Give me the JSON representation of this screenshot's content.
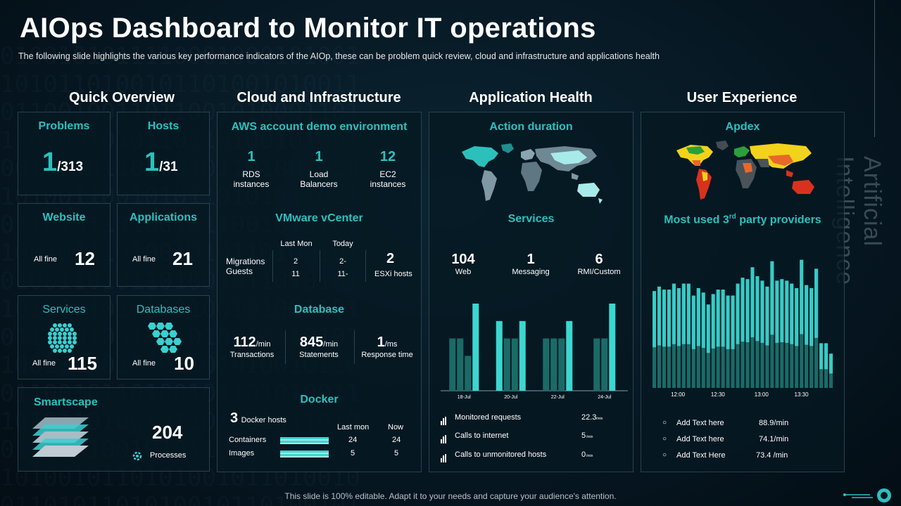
{
  "title": "AIOps Dashboard to Monitor IT operations",
  "subtitle": "The following  slide highlights the various  key performance  indicators of the AIOp, these can be problem  quick review,  cloud and infrastructure  and applications health",
  "footer": "This slide is 100% editable. Adapt it to your needs and capture your audience's attention.",
  "side_label": "Artificial Intelligence",
  "colors": {
    "accent": "#2cc0bd",
    "panel_border": "#2a4250",
    "bar_light": "#3cd6d0",
    "bar_dark": "#1a6b68"
  },
  "quick_overview": {
    "heading": "Quick Overview",
    "problems": {
      "label": "Problems",
      "value": "1",
      "total": "/313"
    },
    "hosts": {
      "label": "Hosts",
      "value": "1",
      "total": "/31"
    },
    "website": {
      "label": "Website",
      "status": "All fine",
      "value": "12"
    },
    "applications": {
      "label": "Applications",
      "status": "All fine",
      "value": "21"
    },
    "services": {
      "label": "Services",
      "status": "All fine",
      "value": "115",
      "icon": "hexagon-cluster-icon"
    },
    "databases": {
      "label": "Databases",
      "status": "All fine",
      "value": "10",
      "icon": "hexagon-cluster-icon"
    },
    "smartscape": {
      "label": "Smartscape",
      "value": "204",
      "sub": "Processes",
      "icon": "stacked-layers-icon"
    }
  },
  "cloud": {
    "heading": "Cloud and Infrastructure",
    "aws": {
      "label": "AWS account demo environment",
      "items": [
        {
          "value": "1",
          "line1": "RDS",
          "line2": "instances"
        },
        {
          "value": "1",
          "line1": "Load",
          "line2": "Balancers"
        },
        {
          "value": "12",
          "line1": "EC2",
          "line2": "instances"
        }
      ]
    },
    "vmware": {
      "label": "VMware vCenter",
      "row_labels": [
        "Migrations",
        "Guests"
      ],
      "col_last": "Last Mon",
      "col_today": "Today",
      "last_values": [
        "2",
        "11"
      ],
      "today_values": [
        "2-",
        "11-"
      ],
      "esxi_value": "2",
      "esxi_label": "ESXi  hosts"
    },
    "database": {
      "label": "Database",
      "items": [
        {
          "value": "112",
          "unit": "/min",
          "label": "Transactions"
        },
        {
          "value": "845",
          "unit": "/min",
          "label": "Statements"
        },
        {
          "value": "1",
          "unit": "/ms",
          "label": "Response time"
        }
      ]
    },
    "docker": {
      "label": "Docker",
      "hosts_value": "3",
      "hosts_label": "Docker hosts",
      "col_last": "Last mon",
      "col_now": "Now",
      "rows": [
        {
          "label": "Containers",
          "last": "24",
          "now": "24"
        },
        {
          "label": "Images",
          "last": "5",
          "now": "5"
        }
      ]
    }
  },
  "app_health": {
    "heading": "Application Health",
    "action_label": "Action duration",
    "services_label": "Services",
    "services": [
      {
        "value": "104",
        "label": "Web"
      },
      {
        "value": "1",
        "label": "Messaging"
      },
      {
        "value": "6",
        "label": "RMI/Custom"
      }
    ],
    "metrics": [
      {
        "label": "Monitored requests",
        "value": "22.3",
        "unit": "/min"
      },
      {
        "label": "Calls to internet",
        "value": "5",
        "unit": "/min"
      },
      {
        "label": "Calls to unmonitored hosts",
        "value": "0",
        "unit": "/min"
      }
    ]
  },
  "user_exp": {
    "heading": "User Experience",
    "apdex_label": "Apdex",
    "providers_label": "Most used 3",
    "providers_sup": "rd",
    "providers_tail": " party providers",
    "items": [
      {
        "label": "Add Text here",
        "value": "88.9/min"
      },
      {
        "label": "Add Text here",
        "value": "74.1/min"
      },
      {
        "label": "Add Text Here",
        "value": "73.4 /min"
      }
    ]
  },
  "chart_data": [
    {
      "type": "bar",
      "x_ticks": [
        "18-Jul",
        "20-Jul",
        "22-Jul",
        "24-Jul"
      ],
      "groups": [
        {
          "label": "18-Jul",
          "values": [
            60,
            60,
            40,
            100
          ]
        },
        {
          "label": "20-Jul",
          "values": [
            80,
            60,
            60,
            80
          ]
        },
        {
          "label": "22-Jul",
          "values": [
            60,
            60,
            60,
            80
          ]
        },
        {
          "label": "24-Jul",
          "values": [
            60,
            60,
            100
          ]
        }
      ],
      "ylim": [
        0,
        100
      ]
    },
    {
      "type": "bar",
      "x_ticks": [
        "12:00",
        "12:30",
        "13:00",
        "13:30"
      ],
      "values": [
        65,
        68,
        66,
        66,
        70,
        67,
        70,
        70,
        62,
        67,
        64,
        56,
        63,
        66,
        66,
        62,
        62,
        70,
        74,
        73,
        81,
        75,
        72,
        68,
        85,
        72,
        73,
        72,
        70,
        67,
        86,
        69,
        67,
        80,
        30,
        30,
        23
      ],
      "ylim": [
        0,
        100
      ]
    }
  ]
}
